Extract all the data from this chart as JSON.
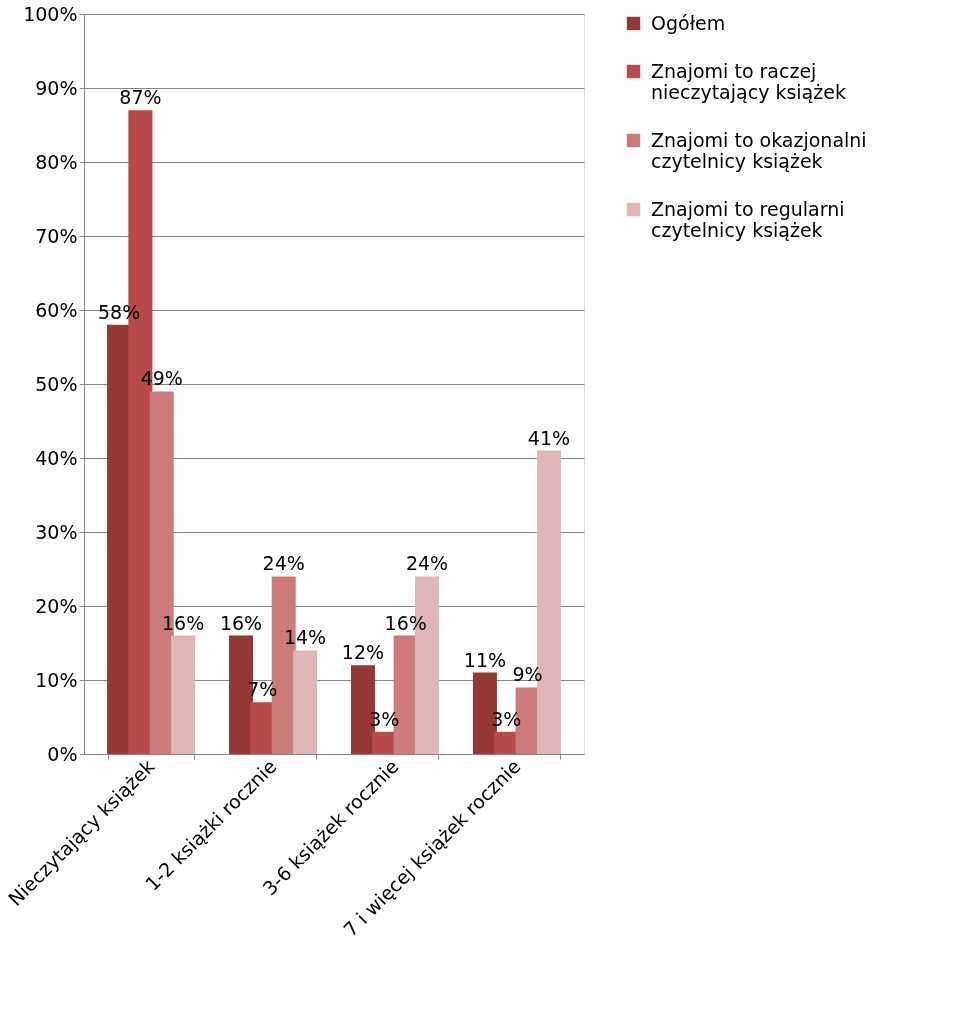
{
  "chart_data": {
    "type": "bar",
    "categories": [
      "Nieczytający książek",
      "1-2 książki rocznie",
      "3-6 książek rocznie",
      "7 i więcej książek rocznie"
    ],
    "series": [
      {
        "name": "Ogółem",
        "color": "#953735",
        "values": [
          58,
          16,
          12,
          11
        ],
        "value_labels": [
          "58%",
          "16%",
          "12%",
          "11%"
        ]
      },
      {
        "name": "Znajomi to raczej nieczytający książek",
        "color": "#b84b4a",
        "values": [
          87,
          7,
          3,
          3
        ],
        "value_labels": [
          "87%",
          "7%",
          "3%",
          "3%"
        ]
      },
      {
        "name": "Znajomi to okazjonalni czytelnicy książek",
        "color": "#cc7b7a",
        "values": [
          49,
          24,
          16,
          9
        ],
        "value_labels": [
          "49%",
          "24%",
          "16%",
          "9%"
        ]
      },
      {
        "name": "Znajomi to regularni czytelnicy książek",
        "color": "#e0b5b5",
        "values": [
          16,
          14,
          24,
          41
        ],
        "value_labels": [
          "16%",
          "14%",
          "24%",
          "41%"
        ]
      }
    ],
    "ylim": [
      0,
      100
    ],
    "yticks": [
      {
        "value": 0,
        "label": "0%"
      },
      {
        "value": 10,
        "label": "10%"
      },
      {
        "value": 20,
        "label": "20%"
      },
      {
        "value": 30,
        "label": "30%"
      },
      {
        "value": 40,
        "label": "40%"
      },
      {
        "value": 50,
        "label": "50%"
      },
      {
        "value": 60,
        "label": "60%"
      },
      {
        "value": 70,
        "label": "70%"
      },
      {
        "value": 80,
        "label": "80%"
      },
      {
        "value": 90,
        "label": "90%"
      },
      {
        "value": 100,
        "label": "100%"
      }
    ],
    "grid": "y",
    "legend": "right"
  }
}
